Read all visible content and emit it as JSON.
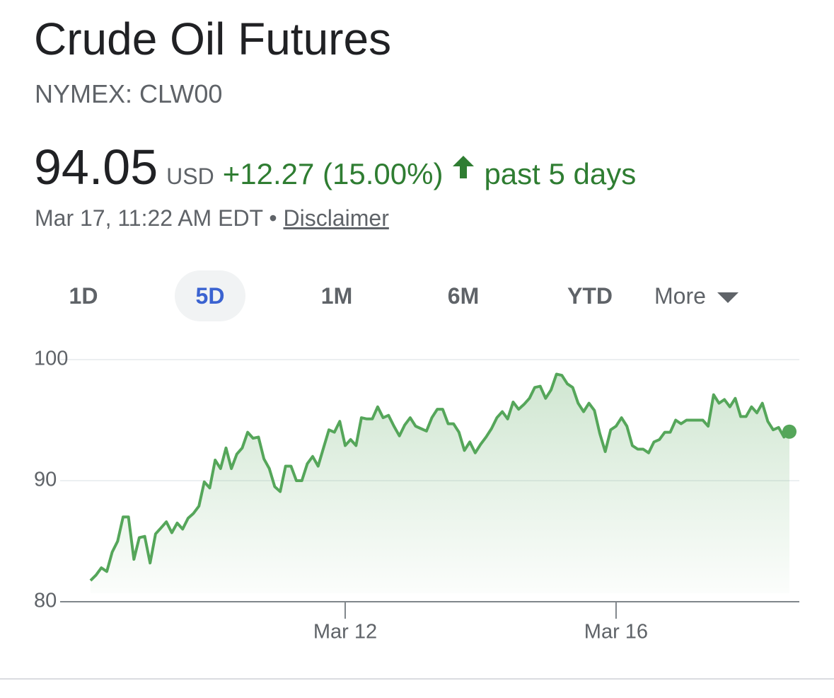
{
  "header": {
    "title": "Crude Oil Futures",
    "subtitle": "NYMEX: CLW00"
  },
  "quote": {
    "price": "94.05",
    "currency": "USD",
    "change": "+12.27 (15.00%)",
    "period": "past 5 days",
    "timestamp": "Mar 17, 11:22 AM EDT",
    "separator": "•",
    "disclaimer": "Disclaimer"
  },
  "tabs": {
    "items": [
      "1D",
      "5D",
      "1M",
      "6M",
      "YTD",
      "More"
    ],
    "selected": "5D"
  },
  "chart_data": {
    "type": "line",
    "color": "#55a65a",
    "grid": true,
    "ylim": [
      80,
      100
    ],
    "yticks": [
      80,
      90,
      100
    ],
    "categories": [
      null,
      null,
      null,
      null,
      null,
      null,
      null,
      null,
      null,
      null,
      null,
      null,
      null,
      null,
      null,
      null,
      null,
      null,
      null,
      null,
      null,
      null,
      null,
      null,
      null,
      null,
      null,
      null,
      null,
      null,
      null,
      null,
      null,
      null,
      null,
      null,
      null,
      null,
      null,
      null,
      null,
      null,
      null,
      null,
      null,
      null,
      null,
      "Mar 12",
      null,
      null,
      null,
      null,
      null,
      null,
      null,
      null,
      null,
      null,
      null,
      null,
      null,
      null,
      null,
      null,
      null,
      null,
      null,
      null,
      null,
      null,
      null,
      null,
      null,
      null,
      null,
      null,
      null,
      null,
      null,
      null,
      null,
      null,
      null,
      null,
      null,
      null,
      null,
      null,
      null,
      null,
      null,
      null,
      null,
      null,
      null,
      null,
      null,
      "Mar 16",
      null,
      null,
      null,
      null,
      null,
      null,
      null,
      null,
      null,
      null,
      null,
      null,
      null,
      null,
      null,
      null,
      null,
      null,
      null,
      null,
      null,
      null,
      null,
      null,
      null,
      null,
      null,
      null,
      null,
      null,
      null,
      null
    ],
    "values": [
      81.75,
      82.2,
      82.8,
      82.5,
      84.1,
      85.0,
      87.0,
      87.0,
      83.5,
      85.3,
      85.4,
      83.2,
      85.6,
      86.1,
      86.6,
      85.7,
      86.5,
      86.0,
      86.9,
      87.3,
      87.9,
      89.9,
      89.4,
      91.7,
      91.0,
      92.7,
      91.0,
      92.2,
      92.7,
      94.0,
      93.5,
      93.6,
      91.8,
      91.0,
      89.5,
      89.1,
      91.2,
      91.2,
      90.0,
      90.0,
      91.4,
      92.0,
      91.2,
      92.7,
      94.2,
      94.0,
      94.9,
      92.9,
      93.4,
      92.9,
      95.2,
      95.1,
      95.1,
      96.1,
      95.2,
      95.4,
      94.5,
      93.7,
      94.6,
      95.2,
      94.5,
      94.3,
      94.1,
      95.2,
      95.9,
      95.9,
      94.7,
      94.7,
      94.0,
      92.5,
      93.2,
      92.3,
      93.0,
      93.6,
      94.3,
      95.2,
      95.7,
      95.1,
      96.5,
      95.9,
      96.3,
      96.8,
      97.7,
      97.8,
      96.8,
      97.5,
      98.8,
      98.7,
      98.0,
      97.7,
      96.4,
      95.7,
      96.4,
      95.8,
      93.9,
      92.4,
      94.2,
      94.5,
      95.2,
      94.5,
      92.9,
      92.6,
      92.6,
      92.3,
      93.2,
      93.4,
      94.0,
      94.0,
      95.0,
      94.7,
      95.0,
      95.0,
      95.0,
      95.0,
      94.5,
      97.1,
      96.4,
      96.7,
      96.1,
      96.8,
      95.3,
      95.3,
      96.1,
      95.6,
      96.4,
      94.9,
      94.2,
      94.4,
      93.6,
      94.05
    ]
  }
}
